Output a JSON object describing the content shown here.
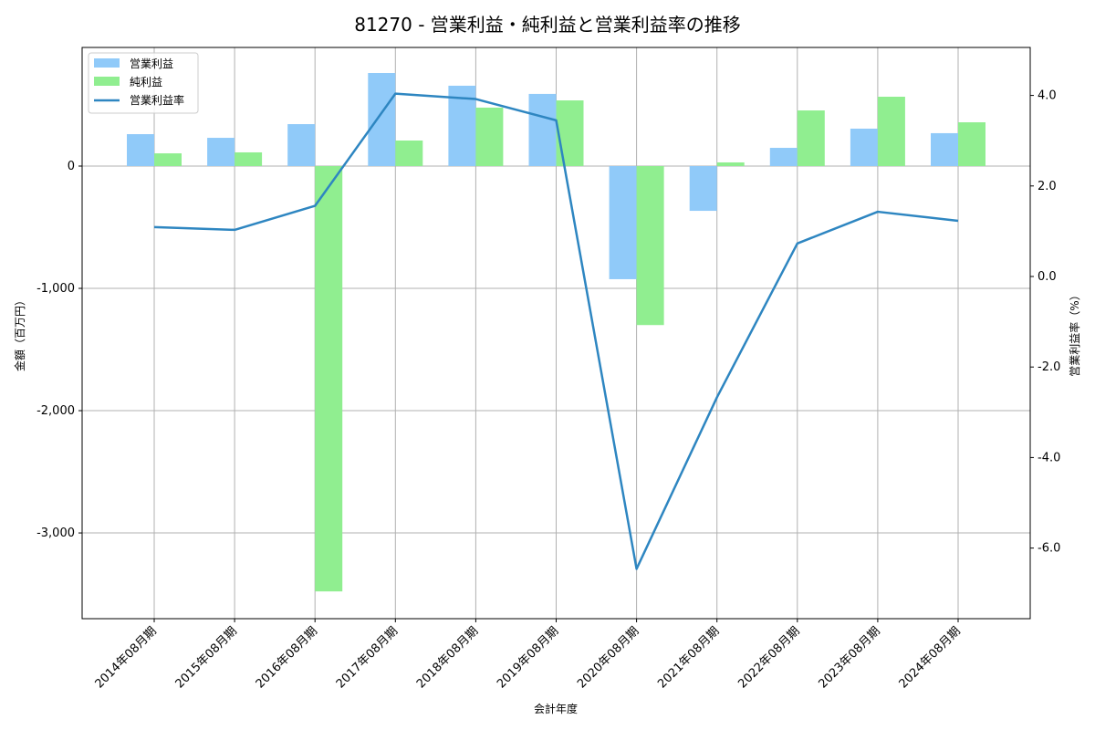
{
  "chart_data": {
    "type": "bar",
    "title": "81270 - 営業利益・純利益と営業利益率の推移",
    "xlabel": "会計年度",
    "ylabel": "金額（百万円）",
    "y2label": "営業利益率（%）",
    "categories": [
      "2014年08月期",
      "2015年08月期",
      "2016年08月期",
      "2017年08月期",
      "2018年08月期",
      "2019年08月期",
      "2020年08月期",
      "2021年08月期",
      "2022年08月期",
      "2023年08月期",
      "2024年08月期"
    ],
    "series": [
      {
        "name": "営業利益",
        "type": "bar",
        "axis": "left",
        "color": "#90CAF9",
        "values": [
          261,
          231,
          343,
          761,
          657,
          590,
          -925,
          -366,
          149,
          306,
          269
        ]
      },
      {
        "name": "純利益",
        "type": "bar",
        "axis": "left",
        "color": "#90EE90",
        "values": [
          104,
          112,
          -3478,
          209,
          478,
          537,
          -1300,
          30,
          455,
          567,
          358
        ]
      },
      {
        "name": "営業利益率",
        "type": "line",
        "axis": "right",
        "color": "#2E86C1",
        "values": [
          1.09,
          1.03,
          1.56,
          4.04,
          3.92,
          3.45,
          -6.46,
          -2.67,
          0.73,
          1.43,
          1.23
        ]
      }
    ],
    "ylim": [
      -3701,
      970
    ],
    "y2lim": [
      -7.56,
      5.06
    ],
    "yticks": [
      0,
      -1000,
      -2000,
      -3000
    ],
    "ytick_labels": [
      "0",
      "-1,000",
      "-2,000",
      "-3,000"
    ],
    "y2ticks": [
      4.0,
      2.0,
      0.0,
      -2.0,
      -4.0,
      -6.0
    ],
    "y2tick_labels": [
      "4.0",
      "2.0",
      "0.0",
      "-2.0",
      "-4.0",
      "-6.0"
    ],
    "grid": true,
    "legend_position": "upper left",
    "legend": [
      "営業利益",
      "純利益",
      "営業利益率"
    ]
  }
}
